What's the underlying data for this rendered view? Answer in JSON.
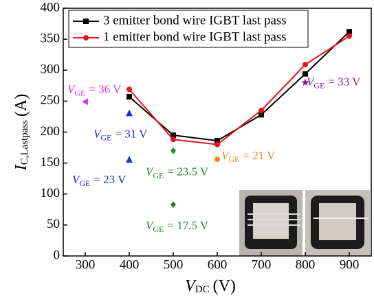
{
  "chart_data": {
    "type": "line",
    "xlabel": {
      "var": "V",
      "sub": "DC",
      "rest": "(V)"
    },
    "ylabel": {
      "var": "I",
      "sub": "C,Lastpass",
      "rest": "(A)"
    },
    "x": [
      400,
      500,
      600,
      700,
      800,
      900
    ],
    "xlim": [
      250,
      950
    ],
    "xticks": [
      300,
      400,
      500,
      600,
      700,
      800,
      900
    ],
    "ylim": [
      0,
      400
    ],
    "yticks": [
      0,
      50,
      100,
      150,
      200,
      250,
      300,
      350,
      400
    ],
    "legend": "upper left",
    "series": [
      {
        "name": "3 emitter bond wire IGBT last pass",
        "color": "#000000",
        "marker": "square",
        "values": [
          257,
          195,
          186,
          228,
          294,
          362
        ]
      },
      {
        "name": "1 emitter bond wire IGBT last pass",
        "color": "#e8141a",
        "marker": "circle",
        "values": [
          269,
          188,
          180,
          235,
          309,
          355
        ]
      }
    ],
    "markers": [
      {
        "x": 300,
        "y": 249,
        "color": "#e830e8",
        "shape": "triangle-left",
        "label": {
          "var": "V",
          "sub": "GE",
          "rest": "= 36 V"
        }
      },
      {
        "x": 400,
        "y": 230,
        "color": "#1f2fe0",
        "shape": "triangle-up",
        "label": {
          "var": "V",
          "sub": "GE",
          "rest": "= 31 V"
        }
      },
      {
        "x": 400,
        "y": 155,
        "color": "#1f2fe0",
        "shape": "triangle-up",
        "label": {
          "var": "V",
          "sub": "GE",
          "rest": "= 23 V"
        }
      },
      {
        "x": 500,
        "y": 170,
        "color": "#1f8a2a",
        "shape": "diamond",
        "label": {
          "var": "V",
          "sub": "GE",
          "rest": "= 23.5 V"
        }
      },
      {
        "x": 500,
        "y": 83,
        "color": "#1f8a2a",
        "shape": "diamond",
        "label": {
          "var": "V",
          "sub": "GE",
          "rest": "= 17.5 V"
        }
      },
      {
        "x": 600,
        "y": 156,
        "color": "#f08a1a",
        "shape": "circle",
        "label": {
          "var": "V",
          "sub": "GE",
          "rest": "= 21 V"
        }
      },
      {
        "x": 800,
        "y": 280,
        "color": "#8a1a8a",
        "shape": "star",
        "label": {
          "var": "V",
          "sub": "GE",
          "rest": "= 33 V"
        }
      }
    ]
  }
}
